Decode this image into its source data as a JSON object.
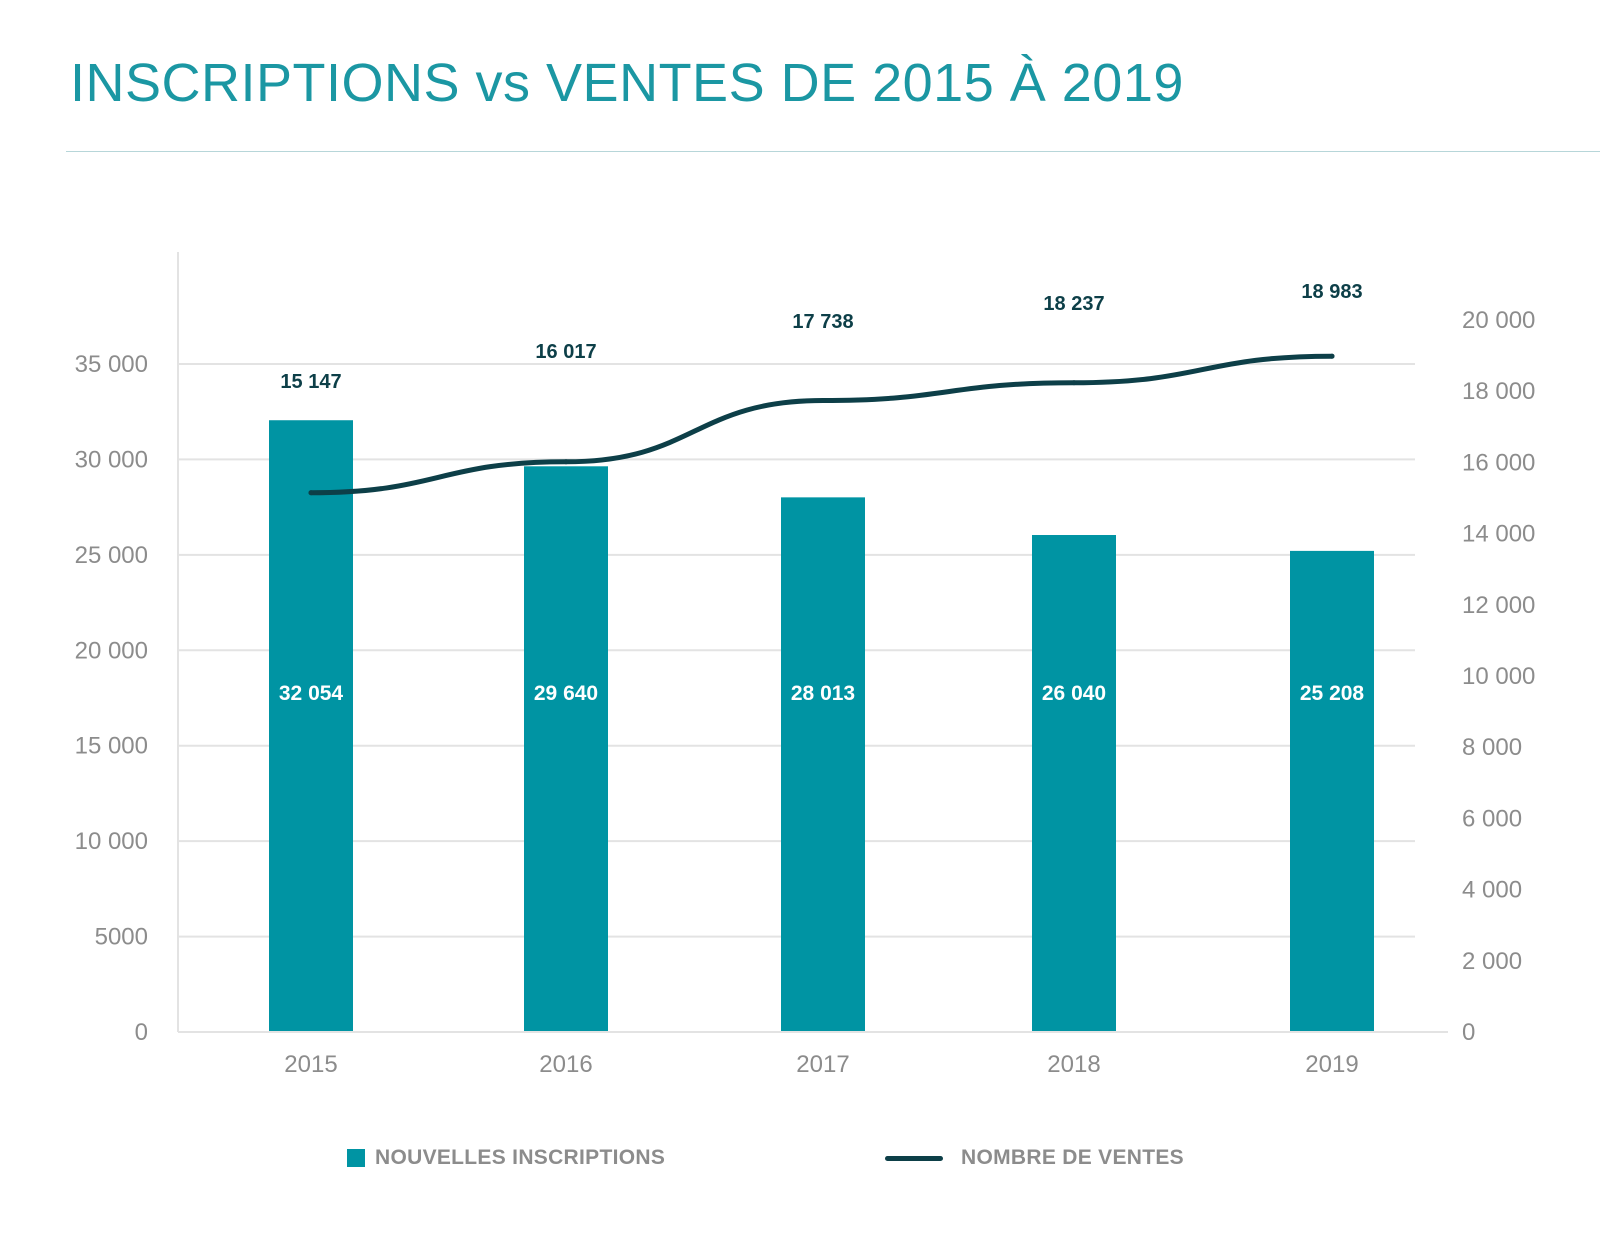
{
  "title": "INSCRIPTIONS vs VENTES DE 2015 À 2019",
  "chart_data": {
    "type": "bar",
    "title": "INSCRIPTIONS vs VENTES DE 2015 À 2019",
    "categories": [
      "2015",
      "2016",
      "2017",
      "2018",
      "2019"
    ],
    "series": [
      {
        "name": "NOUVELLES INSCRIPTIONS",
        "kind": "bar",
        "axis": "left",
        "values": [
          32054,
          29640,
          28013,
          26040,
          25208
        ],
        "labels": [
          "32 054",
          "29 640",
          "28 013",
          "26 040",
          "25 208"
        ],
        "color": "#0094A3"
      },
      {
        "name": "NOMBRE DE VENTES",
        "kind": "line",
        "axis": "right",
        "values": [
          15147,
          16017,
          17738,
          18237,
          18983
        ],
        "labels": [
          "15 147",
          "16 017",
          "17 738",
          "18 237",
          "18 983"
        ],
        "color": "#0D3F48"
      }
    ],
    "left_axis": {
      "ylim": [
        0,
        35000
      ],
      "ticks": [
        0,
        5000,
        10000,
        15000,
        20000,
        25000,
        30000,
        35000
      ],
      "tick_labels": [
        "0",
        "5000",
        "10 000",
        "15 000",
        "20 000",
        "25 000",
        "30 000",
        "35 000"
      ]
    },
    "right_axis": {
      "ylim": [
        0,
        20000
      ],
      "ticks": [
        0,
        2000,
        4000,
        6000,
        8000,
        10000,
        12000,
        14000,
        16000,
        18000,
        20000
      ],
      "tick_labels": [
        "0",
        "2 000",
        "4 000",
        "6 000",
        "8 000",
        "10 000",
        "12 000",
        "14 000",
        "16 000",
        "18 000",
        "20 000"
      ]
    },
    "grid": true,
    "legend_position": "bottom"
  }
}
